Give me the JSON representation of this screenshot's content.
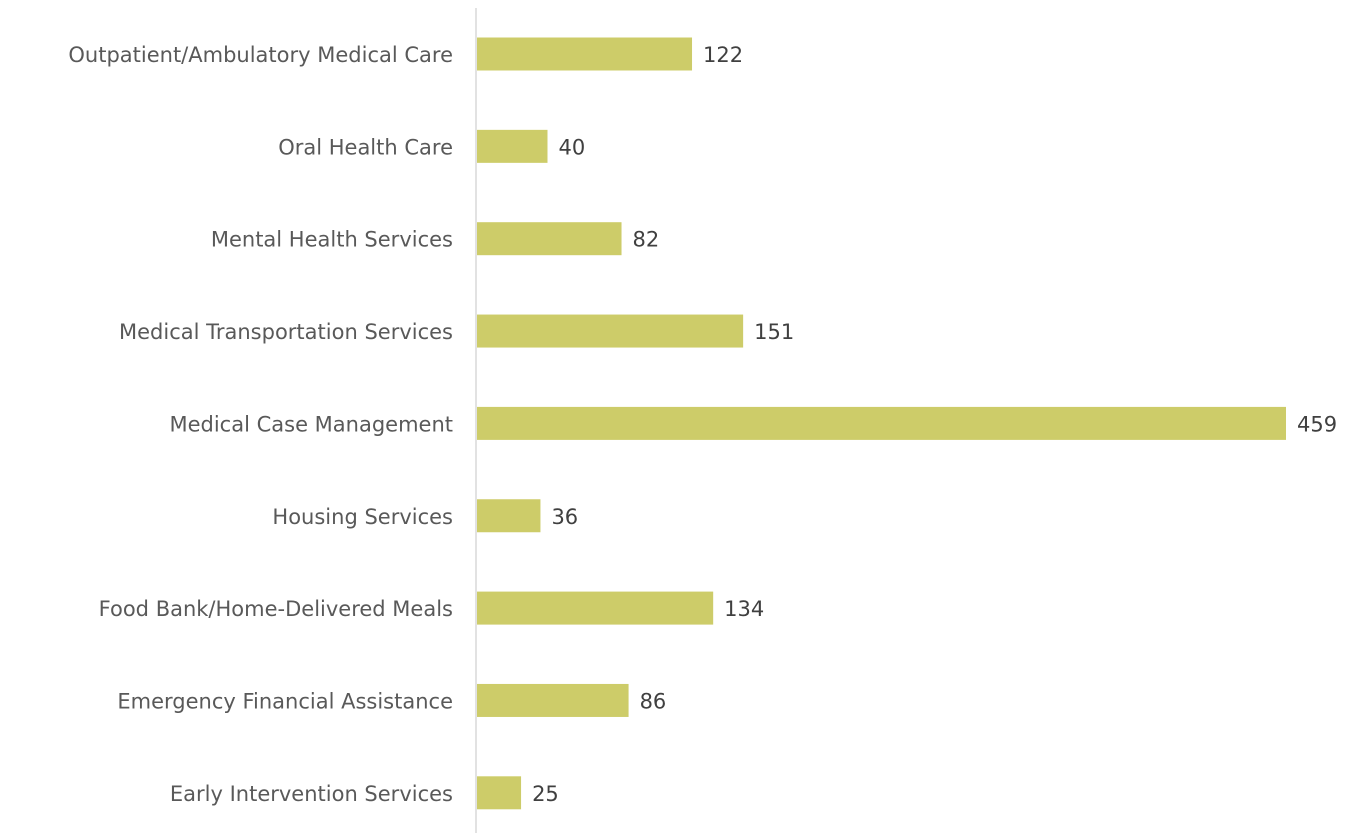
{
  "chart_data": {
    "type": "bar",
    "orientation": "horizontal",
    "categories": [
      "Outpatient/Ambulatory Medical Care",
      "Oral Health Care",
      "Mental Health Services",
      "Medical Transportation Services",
      "Medical Case Management",
      "Housing Services",
      "Food Bank/Home-Delivered Meals",
      "Emergency Financial Assistance",
      "Early Intervention Services"
    ],
    "values": [
      122,
      40,
      82,
      151,
      459,
      36,
      134,
      86,
      25
    ],
    "color": "#cdcc69"
  }
}
